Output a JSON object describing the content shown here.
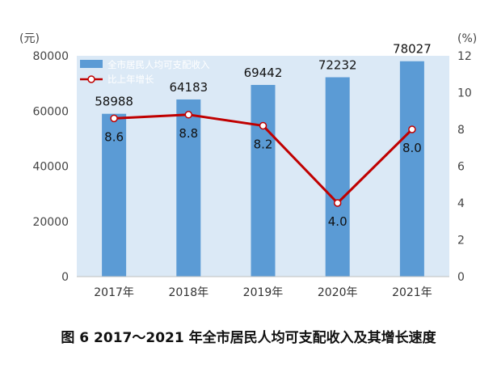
{
  "chart_data": {
    "type": "bar",
    "categories": [
      "2017年",
      "2018年",
      "2019年",
      "2020年",
      "2021年"
    ],
    "series": [
      {
        "name": "全市居民人均可支配收入",
        "type": "bar",
        "axis": "left",
        "values": [
          58988,
          64183,
          69442,
          72232,
          78027
        ],
        "color": "#5b9bd5"
      },
      {
        "name": "比上年增长",
        "type": "line",
        "axis": "right",
        "values": [
          8.6,
          8.8,
          8.2,
          4.0,
          8.0
        ],
        "color": "#c00000",
        "labels": [
          "8.6",
          "8.8",
          "8.2",
          "4.0",
          "8.0"
        ]
      }
    ],
    "bar_labels": [
      "58988",
      "64183",
      "69442",
      "72232",
      "78027"
    ],
    "ylabel_left": "(元)",
    "ylabel_right": "(%)",
    "ylim_left": [
      0,
      80000
    ],
    "yticks_left": [
      "0",
      "20000",
      "40000",
      "60000",
      "80000"
    ],
    "ylim_right": [
      0,
      12
    ],
    "yticks_right": [
      "0",
      "2",
      "4",
      "6",
      "8",
      "10",
      "12"
    ],
    "plot_background": "#dbe9f6",
    "grid": false,
    "legend": "top-left",
    "caption": "图 6  2017～2021 年全市居民人均可支配收入及其增长速度"
  }
}
